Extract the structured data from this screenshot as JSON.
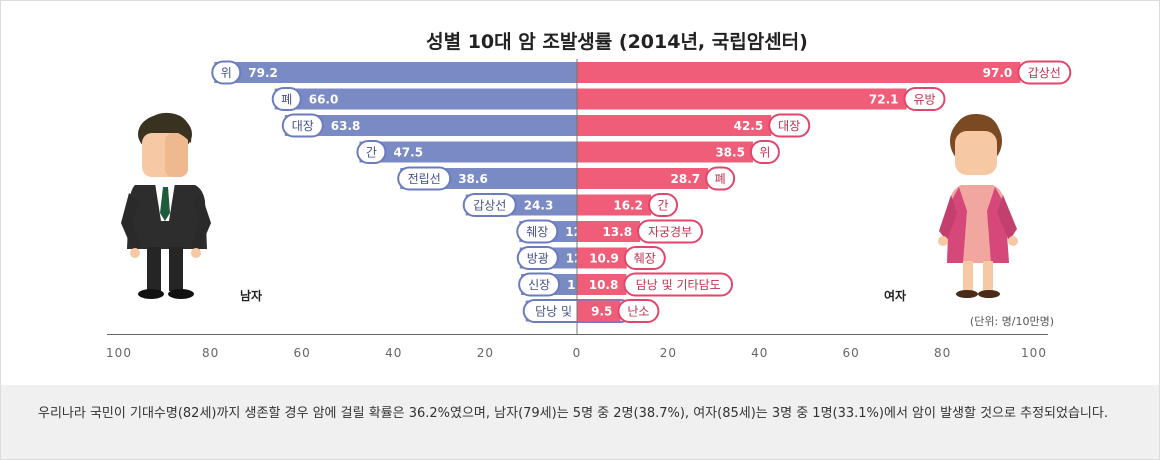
{
  "chart_data": {
    "type": "bar",
    "orientation": "horizontal-population-pyramid",
    "title": "성별 10대 암 조발생률 (2014년, 국립암센터)",
    "unit": "(단위: 명/10만명)",
    "xlim": [
      0,
      100
    ],
    "x_ticks": [
      "100",
      "80",
      "60",
      "40",
      "20",
      "0",
      "20",
      "40",
      "60",
      "80",
      "100"
    ],
    "series": [
      {
        "name": "남자",
        "color": "#7a8ac4",
        "categories": [
          "위",
          "폐",
          "대장",
          "간",
          "전립선",
          "갑상선",
          "췌장",
          "방광",
          "신장",
          "담낭 및 기타담도"
        ],
        "values": [
          79.2,
          66.0,
          63.8,
          47.5,
          38.6,
          24.3,
          12.6,
          12.5,
          12.2,
          11.2
        ],
        "value_labels": [
          "79.2",
          "66.0",
          "63.8",
          "47.5",
          "38.6",
          "24.3",
          "12.6",
          "12.5",
          "12.2",
          "11.2"
        ]
      },
      {
        "name": "여자",
        "color": "#ef5d79",
        "categories": [
          "갑상선",
          "유방",
          "대장",
          "위",
          "폐",
          "간",
          "자궁경부",
          "췌장",
          "담낭 및 기타담도",
          "난소"
        ],
        "values": [
          97.0,
          72.1,
          42.5,
          38.5,
          28.7,
          16.2,
          13.8,
          10.9,
          10.8,
          9.5
        ],
        "value_labels": [
          "97.0",
          "72.1",
          "42.5",
          "38.5",
          "28.7",
          "16.2",
          "13.8",
          "10.9",
          "10.8",
          "9.5"
        ]
      }
    ]
  },
  "labels": {
    "male": "남자",
    "female": "여자"
  },
  "colors": {
    "male_bar": "#7a8ac4",
    "male_border": "#6b7bbd",
    "female_bar": "#ef5d79",
    "female_border": "#e2466a",
    "axis": "#666666",
    "tick_text": "#666666"
  },
  "footer": {
    "text": "우리나라 국민이 기대수명(82세)까지 생존할 경우 암에 걸릴 확률은 36.2%였으며, 남자(79세)는 5명 중 2명(38.7%), 여자(85세)는 3명 중 1명(33.1%)에서 암이 발생할 것으로 추정되었습니다."
  },
  "illustrations": {
    "male": "businessman-figure",
    "female": "woman-figure"
  }
}
